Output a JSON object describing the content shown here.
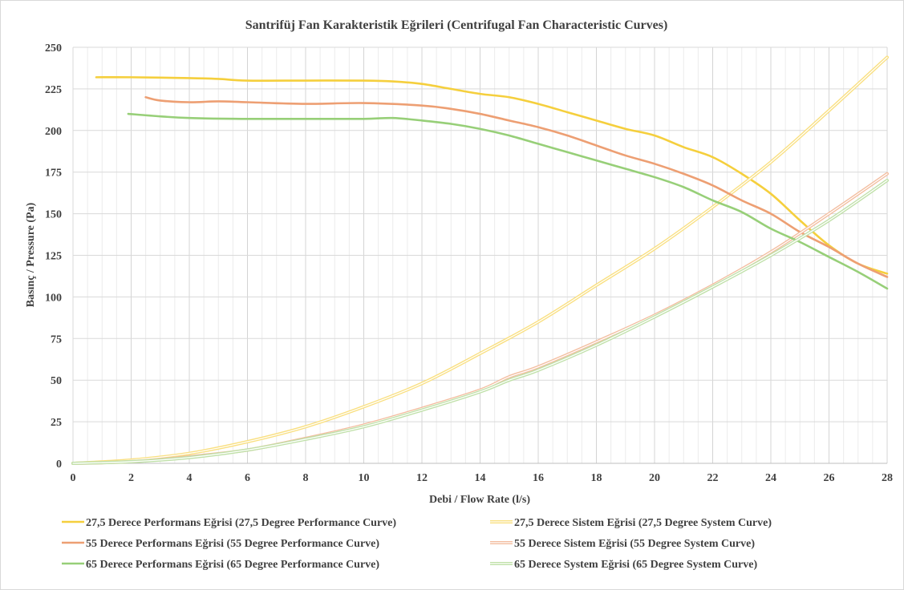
{
  "chart_data": {
    "type": "line",
    "title": "Santrifüj Fan Karakteristik Eğrileri (Centrifugal Fan Characteristic Curves)",
    "xlabel": "Debi / Flow Rate (l/s)",
    "ylabel": "Basınç / Pressure (Pa)",
    "xlim": [
      0,
      28
    ],
    "ylim": [
      0,
      250
    ],
    "x_ticks": [
      0,
      2,
      4,
      6,
      8,
      10,
      12,
      14,
      16,
      18,
      20,
      22,
      24,
      26,
      28
    ],
    "y_ticks": [
      0,
      25,
      50,
      75,
      100,
      125,
      150,
      175,
      200,
      225,
      250
    ],
    "grid": "major and minor vertical, major horizontal",
    "legend_position": "bottom",
    "series": [
      {
        "name": "27,5 Derece Performans Eğrisi (27,5 Degree Performance Curve)",
        "style": "solid",
        "color": "#f5cf3d",
        "points": [
          [
            0.8,
            232
          ],
          [
            2,
            232
          ],
          [
            4,
            231.5
          ],
          [
            5,
            231
          ],
          [
            6,
            230
          ],
          [
            8,
            230
          ],
          [
            10,
            230
          ],
          [
            11,
            229.5
          ],
          [
            12,
            228
          ],
          [
            13,
            225
          ],
          [
            14,
            222
          ],
          [
            15,
            220
          ],
          [
            16,
            216
          ],
          [
            17,
            211
          ],
          [
            18,
            206
          ],
          [
            19,
            201
          ],
          [
            20,
            197
          ],
          [
            21,
            190
          ],
          [
            22,
            184
          ],
          [
            23,
            174
          ],
          [
            24,
            162
          ],
          [
            25,
            146
          ],
          [
            26,
            131
          ],
          [
            27,
            120
          ],
          [
            28,
            114
          ]
        ]
      },
      {
        "name": "27,5 Derece Sistem Eğrisi (27,5 Degree System Curve)",
        "style": "double",
        "color": "#f9df7f",
        "points": [
          [
            0,
            0
          ],
          [
            2,
            2
          ],
          [
            4,
            6
          ],
          [
            6,
            13
          ],
          [
            8,
            22
          ],
          [
            10,
            34
          ],
          [
            12,
            48
          ],
          [
            14,
            66
          ],
          [
            16,
            85
          ],
          [
            18,
            107
          ],
          [
            20,
            129
          ],
          [
            22,
            154
          ],
          [
            24,
            181
          ],
          [
            26,
            212
          ],
          [
            28,
            244
          ]
        ]
      },
      {
        "name": "55 Derece Performans Eğrisi (55 Degree Performance Curve)",
        "style": "solid",
        "color": "#ed9f73",
        "points": [
          [
            2.5,
            220
          ],
          [
            3,
            218
          ],
          [
            4,
            217
          ],
          [
            5,
            217.5
          ],
          [
            6,
            217
          ],
          [
            8,
            216
          ],
          [
            10,
            216.5
          ],
          [
            12,
            215
          ],
          [
            13,
            213
          ],
          [
            14,
            210
          ],
          [
            15,
            206
          ],
          [
            16,
            202
          ],
          [
            17,
            197
          ],
          [
            18,
            191
          ],
          [
            19,
            185
          ],
          [
            20,
            180
          ],
          [
            21,
            174
          ],
          [
            22,
            167
          ],
          [
            23,
            158
          ],
          [
            24,
            150
          ],
          [
            25,
            139
          ],
          [
            26,
            130
          ],
          [
            27,
            120
          ],
          [
            28,
            112
          ]
        ]
      },
      {
        "name": "55 Derece Sistem Eğrisi (55 Degree System Curve)",
        "style": "double",
        "color": "#f3bd9f",
        "points": [
          [
            0,
            0
          ],
          [
            2,
            1
          ],
          [
            4,
            4
          ],
          [
            6,
            8
          ],
          [
            8,
            15
          ],
          [
            10,
            23
          ],
          [
            12,
            33
          ],
          [
            14,
            44
          ],
          [
            15,
            52
          ],
          [
            16,
            58
          ],
          [
            18,
            73
          ],
          [
            20,
            89
          ],
          [
            22,
            107
          ],
          [
            24,
            127
          ],
          [
            26,
            150
          ],
          [
            28,
            174
          ]
        ]
      },
      {
        "name": "65 Derece Performans Eğrisi (65 Degree Performance Curve)",
        "style": "solid",
        "color": "#97cf78",
        "points": [
          [
            1.9,
            210
          ],
          [
            3,
            208.5
          ],
          [
            4,
            207.5
          ],
          [
            6,
            207
          ],
          [
            8,
            207
          ],
          [
            10,
            207
          ],
          [
            11,
            207.5
          ],
          [
            12,
            206
          ],
          [
            13,
            204
          ],
          [
            14,
            201
          ],
          [
            15,
            197
          ],
          [
            16,
            192
          ],
          [
            17,
            187
          ],
          [
            18,
            182
          ],
          [
            19,
            177
          ],
          [
            20,
            172
          ],
          [
            21,
            166
          ],
          [
            22,
            158
          ],
          [
            23,
            151
          ],
          [
            24,
            141
          ],
          [
            25,
            133
          ],
          [
            26,
            124
          ],
          [
            27,
            115
          ],
          [
            28,
            105
          ]
        ]
      },
      {
        "name": "65 Derece System Eğrisi (65 Degree System Curve)",
        "style": "double",
        "color": "#bfe0a8",
        "points": [
          [
            0,
            0
          ],
          [
            2,
            1
          ],
          [
            4,
            3.5
          ],
          [
            6,
            8
          ],
          [
            8,
            14.5
          ],
          [
            10,
            22
          ],
          [
            12,
            32
          ],
          [
            14,
            43
          ],
          [
            15,
            50
          ],
          [
            16,
            56
          ],
          [
            18,
            71
          ],
          [
            20,
            88
          ],
          [
            22,
            106
          ],
          [
            24,
            125
          ],
          [
            26,
            146
          ],
          [
            28,
            170
          ]
        ]
      }
    ]
  }
}
